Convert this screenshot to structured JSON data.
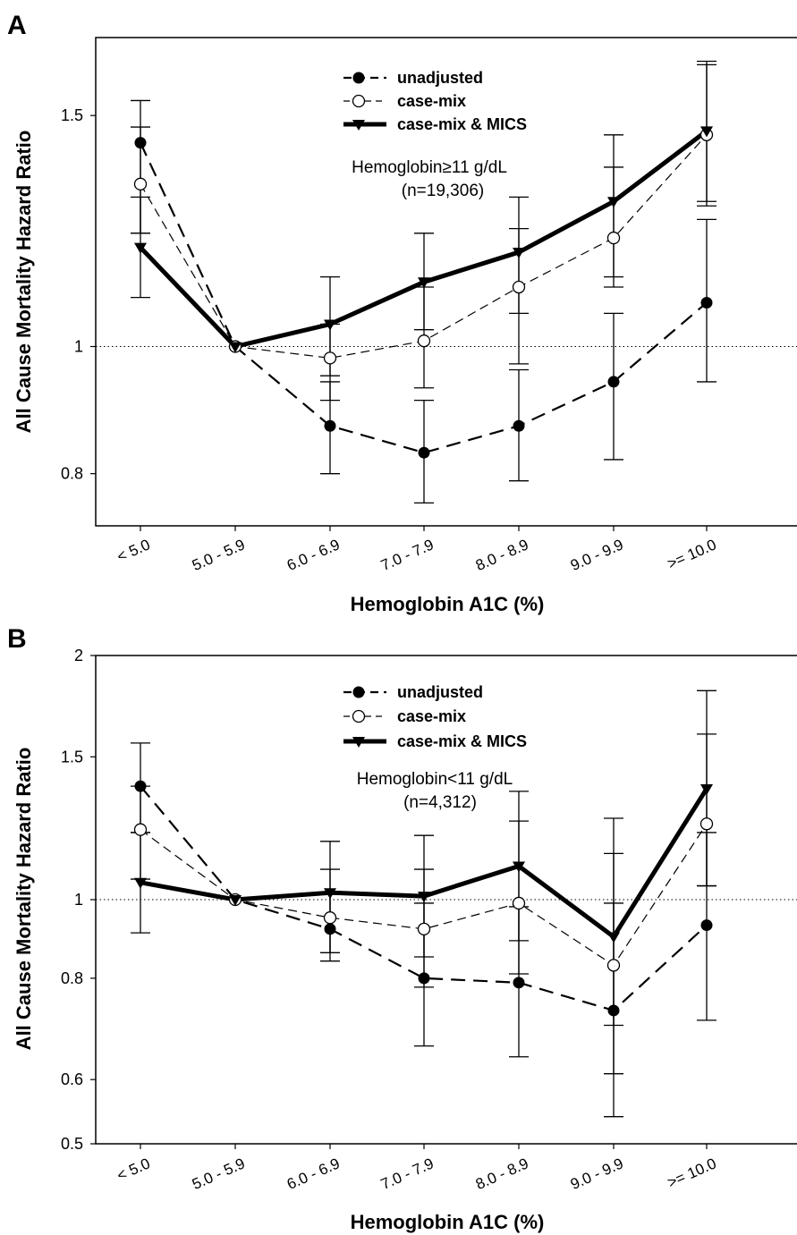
{
  "chart_data": [
    {
      "panel": "A",
      "type": "line",
      "ylabel": "All Cause Mortality Hazard Ratio",
      "xlabel": "Hemoglobin A1C (%)",
      "y_scale": "log",
      "ylim": [
        0.73,
        1.72
      ],
      "yticks": [
        0.8,
        1,
        1.5
      ],
      "ytick_labels": [
        "0.8",
        "1",
        "1.5"
      ],
      "categories": [
        "< 5.0",
        "5.0 - 5.9",
        "6.0 - 6.9",
        "7.0 - 7.9",
        "8.0 - 8.9",
        "9.0 - 9.9",
        ">= 10.0"
      ],
      "reference_line": 1,
      "annotation": [
        "Hemoglobin≥11 g/dL",
        "(n=19,306)"
      ],
      "legend_position": "top-center",
      "series": [
        {
          "name": "unadjusted",
          "style": "long-dash, filled circle",
          "values": [
            1.43,
            1.0,
            0.87,
            0.83,
            0.87,
            0.94,
            1.08
          ],
          "ci_low": [
            1.22,
            null,
            0.8,
            0.76,
            0.79,
            0.82,
            0.94
          ],
          "ci_high": [
            1.54,
            null,
            0.94,
            0.91,
            0.96,
            1.06,
            1.25
          ]
        },
        {
          "name": "case-mix",
          "style": "thin dash, open circle",
          "values": [
            1.33,
            1.0,
            0.98,
            1.01,
            1.11,
            1.21,
            1.45
          ],
          "ci_low": [
            1.22,
            null,
            0.91,
            0.93,
            0.97,
            1.11,
            1.28
          ],
          "ci_high": [
            1.47,
            null,
            1.04,
            1.11,
            1.23,
            1.37,
            1.64
          ]
        },
        {
          "name": "case-mix & MICS",
          "style": "thick solid, filled triangle",
          "values": [
            1.19,
            1.0,
            1.04,
            1.12,
            1.18,
            1.29,
            1.46
          ],
          "ci_low": [
            1.09,
            null,
            0.95,
            1.03,
            1.06,
            1.13,
            1.29
          ],
          "ci_high": [
            1.3,
            null,
            1.13,
            1.22,
            1.3,
            1.45,
            1.65
          ]
        }
      ]
    },
    {
      "panel": "B",
      "type": "line",
      "ylabel": "All Cause Mortality Hazard Ratio",
      "xlabel": "Hemoglobin A1C (%)",
      "y_scale": "log",
      "ylim": [
        0.5,
        2.0
      ],
      "yticks": [
        0.5,
        0.6,
        0.8,
        1,
        1.5,
        2
      ],
      "ytick_labels": [
        "0.5",
        "0.6",
        "0.8",
        "1",
        "1.5",
        "2"
      ],
      "categories": [
        "< 5.0",
        "5.0 - 5.9",
        "6.0 - 6.9",
        "7.0 - 7.9",
        "8.0 - 8.9",
        "9.0 - 9.9",
        ">= 10.0"
      ],
      "reference_line": 1,
      "annotation": [
        "Hemoglobin<11 g/dL",
        "(n=4,312)"
      ],
      "legend_position": "top-center",
      "series": [
        {
          "name": "unadjusted",
          "style": "long-dash, filled circle",
          "values": [
            1.38,
            1.0,
            0.92,
            0.8,
            0.79,
            0.73,
            0.93
          ],
          "ci_low": [
            1.21,
            null,
            0.84,
            0.66,
            0.64,
            0.54,
            0.71
          ],
          "ci_high": [
            1.56,
            null,
            1.02,
            0.99,
            0.98,
            0.99,
            1.21
          ]
        },
        {
          "name": "case-mix",
          "style": "thin dash, open circle",
          "values": [
            1.22,
            1.0,
            0.95,
            0.92,
            0.99,
            0.83,
            1.24
          ],
          "ci_low": [
            1.06,
            null,
            0.86,
            0.78,
            0.81,
            0.61,
            1.04
          ],
          "ci_high": [
            1.38,
            null,
            1.09,
            1.09,
            1.25,
            1.14,
            1.6
          ]
        },
        {
          "name": "case-mix & MICS",
          "style": "thick solid, filled triangle",
          "values": [
            1.05,
            1.0,
            1.02,
            1.01,
            1.1,
            0.9,
            1.37
          ],
          "ci_low": [
            0.91,
            null,
            0.86,
            0.85,
            0.89,
            0.7,
            1.04
          ],
          "ci_high": [
            1.21,
            null,
            1.18,
            1.2,
            1.36,
            1.26,
            1.81
          ]
        }
      ]
    }
  ]
}
